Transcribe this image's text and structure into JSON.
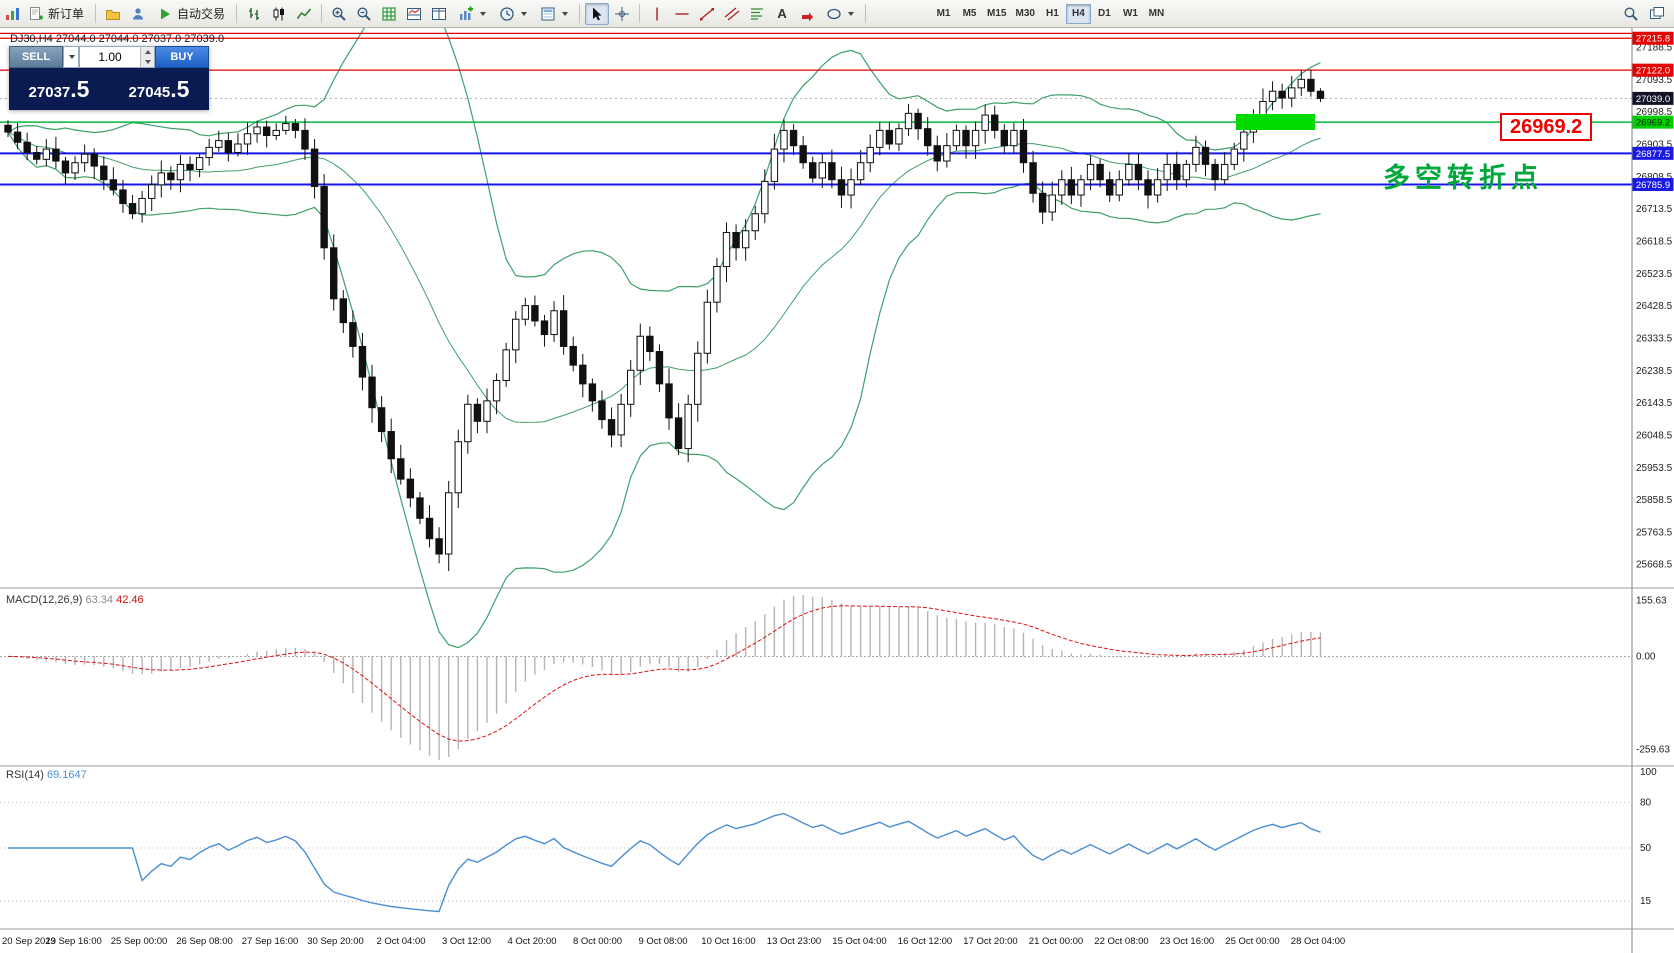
{
  "toolbar": {
    "new_order": "新订单",
    "auto_trading": "自动交易",
    "timeframes": [
      "M1",
      "M5",
      "M15",
      "M30",
      "H1",
      "H4",
      "D1",
      "W1",
      "MN"
    ],
    "active_timeframe": "H4"
  },
  "icons": {
    "text_tool_glyph": "A"
  },
  "trade_panel": {
    "sell_label": "SELL",
    "buy_label": "BUY",
    "volume": "1.00",
    "sell_price_main": "27037",
    "sell_price_pips": ".5",
    "buy_price_main": "27045",
    "buy_price_pips": ".5"
  },
  "chart": {
    "title": "DJ30,H4 27044.0 27044.0 27037.0 27039.0",
    "symbol": "DJ30",
    "period": "H4"
  },
  "annotations": {
    "pivot_text": "多空转折点",
    "level_label": "26969.2"
  },
  "levels": {
    "red": [
      27230.0,
      27215.8,
      27122.0
    ],
    "green": [
      26969.2
    ],
    "blue": [
      26877.5,
      26785.9
    ],
    "bid_line": 27039.0
  },
  "price_scale": {
    "badges": [
      {
        "value": 27215.8,
        "text": "27215.8",
        "type": "resistance",
        "bg": "#e60000",
        "fg": "#ffffff"
      },
      {
        "value": 27122.0,
        "text": "27122.0",
        "type": "resistance",
        "bg": "#e60000",
        "fg": "#ffffff"
      },
      {
        "value": 27039.0,
        "text": "27039.0",
        "type": "last-price",
        "bg": "#141428",
        "fg": "#ffffff"
      },
      {
        "value": 26969.2,
        "text": "26969.2",
        "type": "pivot",
        "bg": "#00d000",
        "fg": "#002200"
      },
      {
        "value": 26877.5,
        "text": "26877.5",
        "type": "support",
        "bg": "#1a1ae6",
        "fg": "#ffffff"
      },
      {
        "value": 26785.9,
        "text": "26785.9",
        "type": "support",
        "bg": "#1a1ae6",
        "fg": "#ffffff"
      }
    ],
    "ticks": [
      27188.5,
      27093.5,
      26998.5,
      26903.5,
      26808.5,
      26713.5,
      26618.5,
      26523.5,
      26428.5,
      26333.5,
      26238.5,
      26143.5,
      26048.5,
      25953.5,
      25858.5,
      25763.5,
      25668.5
    ]
  },
  "macd": {
    "label": "MACD(12,26,9)",
    "value_main": "63.34",
    "value_signal": "42.46",
    "scale": [
      155.63,
      0,
      -259.63
    ]
  },
  "rsi": {
    "label": "RSI(14)",
    "value": "69.1647",
    "levels": [
      80,
      50,
      15
    ],
    "scale": [
      100,
      80,
      50,
      15
    ]
  },
  "chart_data": {
    "type": "candlestick",
    "symbol": "DJ30",
    "timeframe": "H4",
    "title": "DJ30,H4",
    "ohlc_current": {
      "open": 27044.0,
      "high": 27044.0,
      "low": 27037.0,
      "close": 27039.0
    },
    "price_range": [
      25606,
      27240
    ],
    "closes": [
      26940,
      26910,
      26880,
      26860,
      26890,
      26855,
      26820,
      26850,
      26875,
      26840,
      26800,
      26770,
      26730,
      26700,
      26745,
      26785,
      26820,
      26800,
      26845,
      26830,
      26865,
      26895,
      26915,
      26880,
      26905,
      26935,
      26955,
      26930,
      26945,
      26965,
      26945,
      26890,
      26780,
      26600,
      26450,
      26380,
      26310,
      26220,
      26130,
      26060,
      25980,
      25920,
      25865,
      25805,
      25745,
      25700,
      25880,
      26030,
      26140,
      26090,
      26150,
      26210,
      26300,
      26390,
      26430,
      26385,
      26345,
      26415,
      26310,
      26255,
      26200,
      26150,
      26095,
      26050,
      26140,
      26240,
      26340,
      26295,
      26200,
      26100,
      26010,
      26140,
      26290,
      26440,
      26545,
      26645,
      26600,
      26650,
      26700,
      26795,
      26890,
      26945,
      26900,
      26850,
      26805,
      26850,
      26800,
      26755,
      26800,
      26850,
      26895,
      26945,
      26905,
      26950,
      26995,
      26950,
      26900,
      26855,
      26900,
      26945,
      26900,
      26945,
      26990,
      26945,
      26900,
      26945,
      26850,
      26760,
      26705,
      26755,
      26800,
      26755,
      26800,
      26845,
      26800,
      26755,
      26800,
      26845,
      26800,
      26755,
      26800,
      26845,
      26800,
      26845,
      26895,
      26845,
      26800,
      26845,
      26890,
      26940,
      26990,
      27030,
      27060,
      27040,
      27070,
      27095,
      27060,
      27039
    ],
    "x_labels": [
      "20 Sep 2019",
      "23 Sep 16:00",
      "25 Sep 00:00",
      "26 Sep 08:00",
      "27 Sep 16:00",
      "30 Sep 20:00",
      "2 Oct 04:00",
      "3 Oct 12:00",
      "4 Oct 20:00",
      "8 Oct 00:00",
      "9 Oct 08:00",
      "10 Oct 16:00",
      "13 Oct 23:00",
      "15 Oct 04:00",
      "16 Oct 12:00",
      "17 Oct 20:00",
      "21 Oct 00:00",
      "22 Oct 08:00",
      "23 Oct 16:00",
      "25 Oct 00:00",
      "28 Oct 04:00"
    ],
    "overlays": [
      "Bollinger Bands (green)"
    ],
    "indicators": [
      {
        "name": "MACD",
        "params": "12,26,9",
        "values": [
          63.34,
          42.46
        ]
      },
      {
        "name": "RSI",
        "params": "14",
        "value": 69.1647
      }
    ]
  }
}
